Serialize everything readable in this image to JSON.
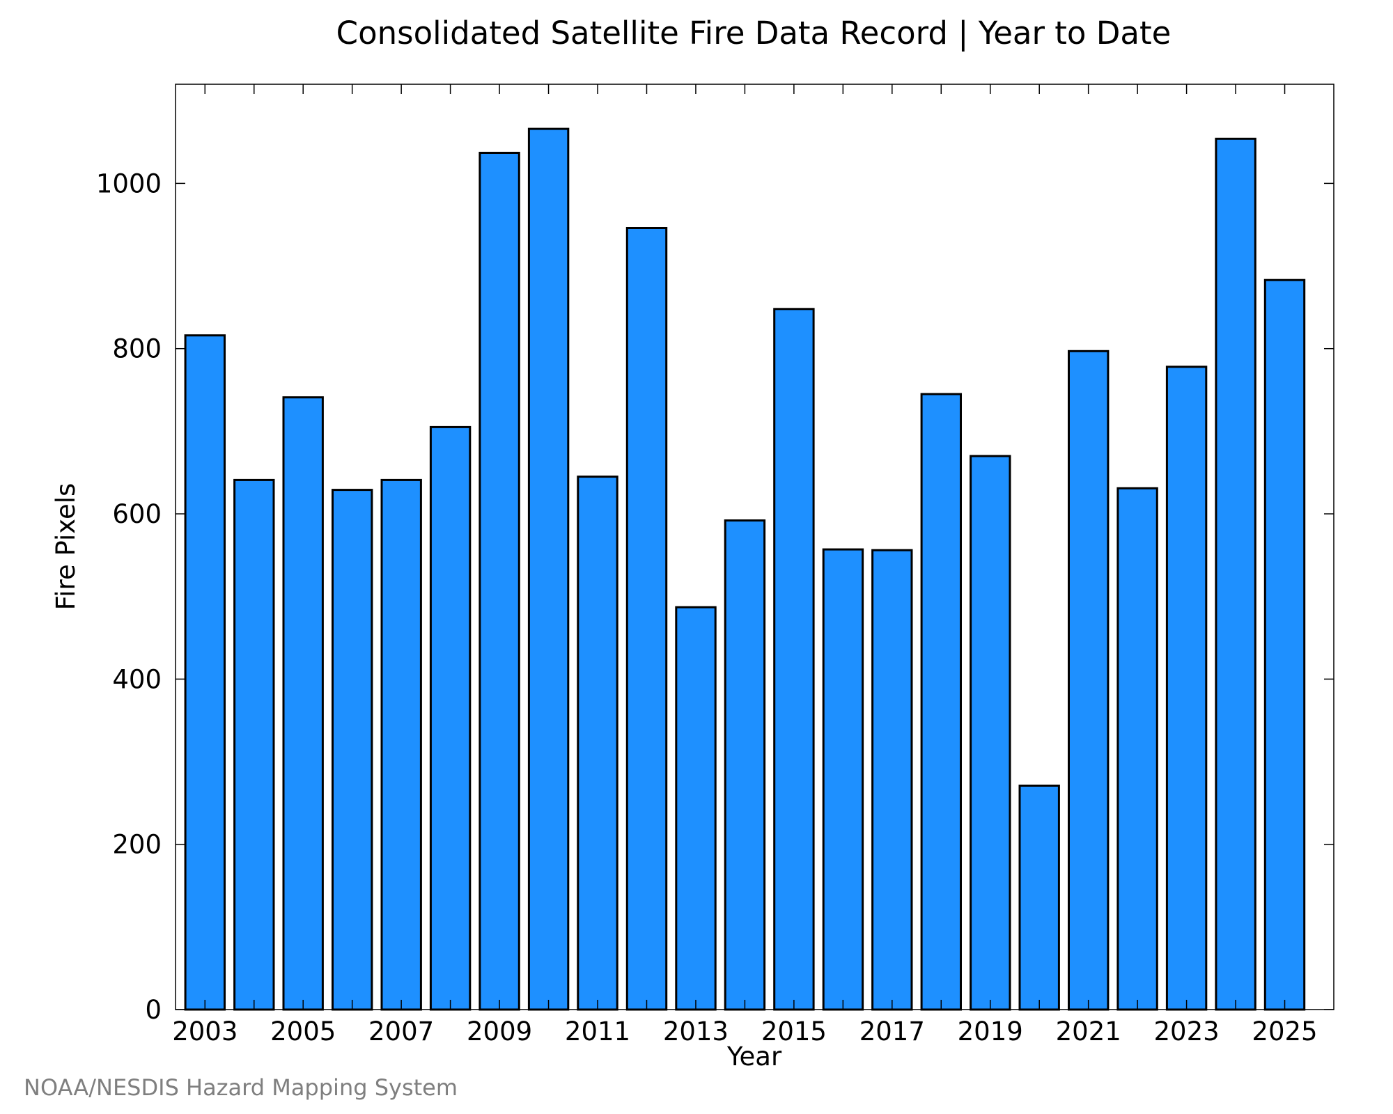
{
  "chart_data": {
    "type": "bar",
    "title": "Consolidated Satellite Fire Data Record | Year to Date",
    "xlabel": "Year",
    "ylabel": "Fire Pixels",
    "categories": [
      2003,
      2004,
      2005,
      2006,
      2007,
      2008,
      2009,
      2010,
      2011,
      2012,
      2013,
      2014,
      2015,
      2016,
      2017,
      2018,
      2019,
      2020,
      2021,
      2022,
      2023,
      2024,
      2025
    ],
    "values": [
      816,
      641,
      741,
      629,
      641,
      705,
      1037,
      1066,
      645,
      946,
      487,
      592,
      848,
      557,
      556,
      745,
      670,
      271,
      797,
      631,
      778,
      1054,
      883
    ],
    "x_tick_labels": [
      "2003",
      "2005",
      "2007",
      "2009",
      "2011",
      "2013",
      "2015",
      "2017",
      "2019",
      "2021",
      "2023",
      "2025"
    ],
    "y_ticks": [
      0,
      200,
      400,
      600,
      800,
      1000
    ],
    "y_tick_labels": [
      "0",
      "200",
      "400",
      "600",
      "800",
      "1000"
    ],
    "ylim": [
      0,
      1120
    ],
    "xlim": [
      2002.4,
      2026
    ],
    "grid": false,
    "bar_color": "#1e90ff",
    "edge_color": "#000000"
  },
  "credit": "NOAA/NESDIS Hazard Mapping System"
}
